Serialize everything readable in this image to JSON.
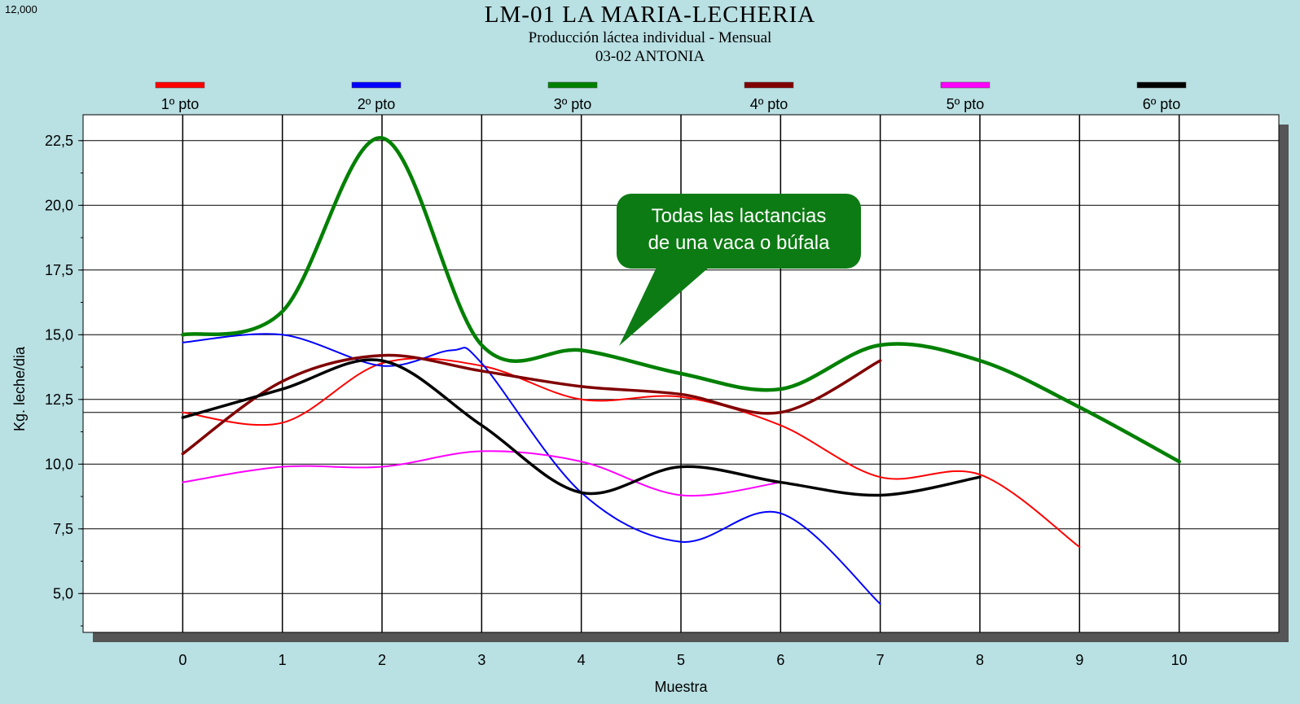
{
  "header": {
    "corner_value": "12,000",
    "title": "LM-01  LA MARIA-LECHERIA",
    "subtitle": "Producción láctea individual - Mensual",
    "subtitle2": "03-02 ANTONIA"
  },
  "callout": {
    "line1": "Todas las lactancias",
    "line2": "de una vaca o búfala",
    "color": "#0d7b14"
  },
  "chart_data": {
    "type": "line",
    "title": "LM-01  LA MARIA-LECHERIA",
    "xlabel": "Muestra",
    "ylabel": "Kg. leche/dia",
    "xlim": [
      -1,
      11
    ],
    "ylim": [
      3.5,
      23.5
    ],
    "x_ticks": [
      0,
      1,
      2,
      3,
      4,
      5,
      6,
      7,
      8,
      9,
      10
    ],
    "x_tick_labels": [
      "0",
      "1",
      "2",
      "3",
      "4",
      "5",
      "6",
      "7",
      "8",
      "9",
      "10"
    ],
    "y_ticks": [
      5,
      7.5,
      10,
      12.5,
      15,
      17.5,
      20,
      22.5
    ],
    "y_tick_labels": [
      "5,0",
      "7,5",
      "10,0",
      "12,5",
      "15,0",
      "17,5",
      "20,0",
      "22,5"
    ],
    "reference_line_y": 12.0,
    "grid": true,
    "legend_position": "top",
    "series": [
      {
        "name": "1º pto",
        "color": "#ff0000",
        "x": [
          0,
          1,
          2,
          3,
          4,
          5,
          6,
          7,
          8,
          9
        ],
        "y": [
          12.0,
          11.6,
          13.9,
          13.8,
          12.5,
          12.6,
          11.5,
          9.5,
          9.6,
          6.8
        ]
      },
      {
        "name": "2º pto",
        "color": "#0000ff",
        "x": [
          0,
          1,
          2,
          2.7,
          3,
          4,
          5,
          6,
          7
        ],
        "y": [
          14.7,
          15.0,
          13.8,
          14.4,
          13.9,
          8.9,
          7.0,
          8.1,
          4.6
        ]
      },
      {
        "name": "3º pto",
        "color": "#008000",
        "x": [
          0,
          1,
          2,
          3,
          4,
          5,
          6,
          7,
          8,
          9,
          10
        ],
        "y": [
          15.0,
          15.9,
          22.6,
          14.6,
          14.4,
          13.5,
          12.9,
          14.6,
          14.0,
          12.2,
          10.1
        ]
      },
      {
        "name": "4º pto",
        "color": "#800000",
        "x": [
          0,
          1,
          2,
          3,
          4,
          5,
          6,
          7
        ],
        "y": [
          10.4,
          13.2,
          14.2,
          13.6,
          13.0,
          12.7,
          12.0,
          14.0
        ]
      },
      {
        "name": "5º pto",
        "color": "#ff00ff",
        "x": [
          0,
          1,
          2,
          3,
          4,
          5,
          6
        ],
        "y": [
          9.3,
          9.9,
          9.9,
          10.5,
          10.1,
          8.8,
          9.3
        ]
      },
      {
        "name": "6º pto",
        "color": "#000000",
        "x": [
          0,
          1,
          2,
          3,
          4,
          5,
          6,
          7,
          8
        ],
        "y": [
          11.8,
          12.9,
          14.0,
          11.5,
          8.9,
          9.9,
          9.3,
          8.8,
          9.5
        ]
      }
    ]
  }
}
